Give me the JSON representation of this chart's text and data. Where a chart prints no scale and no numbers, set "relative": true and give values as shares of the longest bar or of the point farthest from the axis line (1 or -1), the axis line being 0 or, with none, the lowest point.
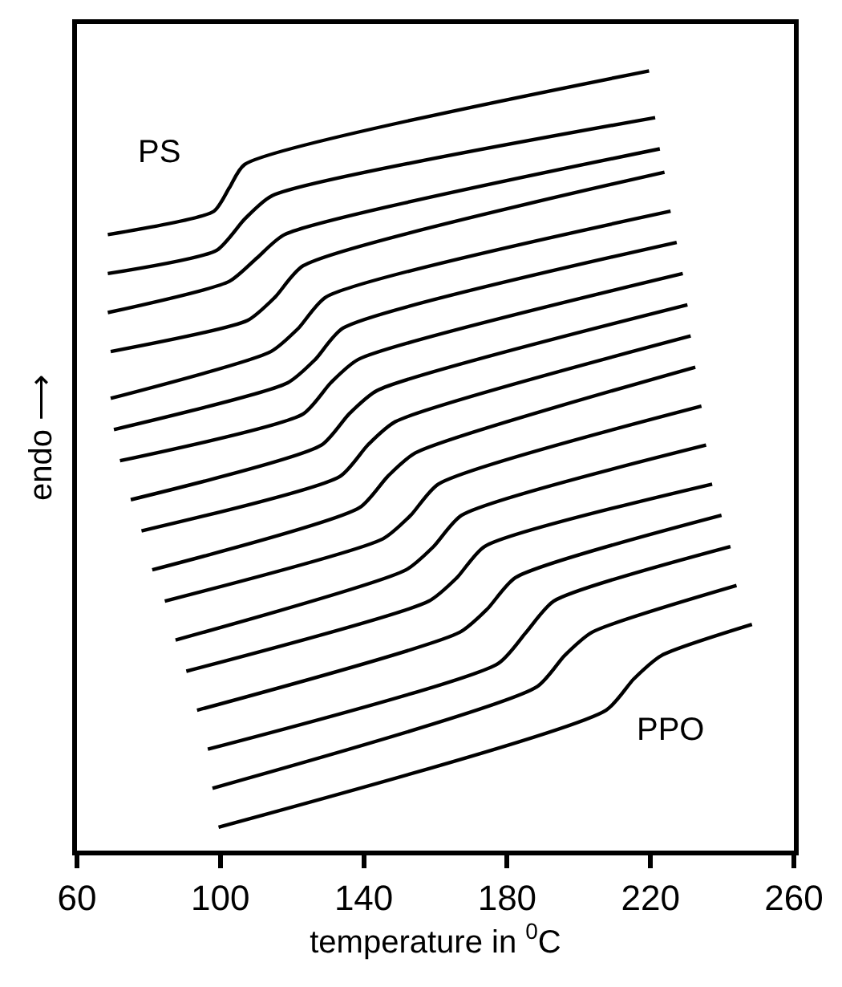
{
  "chart_data": {
    "type": "line",
    "relative": true,
    "xlabel": "temperature in $^{0}$C",
    "ylabel": "endo ⟶",
    "xlim": [
      60,
      260
    ],
    "xticks": [
      60,
      100,
      140,
      180,
      220,
      260
    ],
    "marker": "none",
    "line_style": "solid",
    "annotations": [
      "PS",
      "PPO"
    ],
    "series": [
      {
        "color": "#000000",
        "x": [
          68.6,
          98.2,
          102.5,
          106.8,
          219.6
        ],
        "values": [
          0.79,
          0.82,
          0.85,
          0.88,
          1.0
        ]
      },
      {
        "color": "#000000",
        "x": [
          68.6,
          99.0,
          106.8,
          114.5,
          221.3
        ],
        "values": [
          0.74,
          0.77,
          0.81,
          0.84,
          0.94
        ]
      },
      {
        "color": "#000000",
        "x": [
          68.6,
          102.5,
          110.2,
          117.9,
          222.6
        ],
        "values": [
          0.69,
          0.73,
          0.76,
          0.79,
          0.9
        ]
      },
      {
        "color": "#000000",
        "x": [
          69.4,
          107.6,
          115.3,
          123.1,
          223.9
        ],
        "values": [
          0.64,
          0.68,
          0.71,
          0.75,
          0.87
        ]
      },
      {
        "color": "#000000",
        "x": [
          69.4,
          114.1,
          121.8,
          129.5,
          225.6
        ],
        "values": [
          0.58,
          0.64,
          0.67,
          0.71,
          0.82
        ]
      },
      {
        "color": "#000000",
        "x": [
          70.3,
          118.8,
          126.5,
          134.2,
          227.3
        ],
        "values": [
          0.54,
          0.6,
          0.63,
          0.67,
          0.78
        ]
      },
      {
        "color": "#000000",
        "x": [
          72.0,
          123.1,
          130.8,
          138.5,
          229.0
        ],
        "values": [
          0.5,
          0.56,
          0.6,
          0.63,
          0.74
        ]
      },
      {
        "color": "#000000",
        "x": [
          75.0,
          128.2,
          135.9,
          143.7,
          230.3
        ],
        "values": [
          0.45,
          0.52,
          0.56,
          0.59,
          0.7
        ]
      },
      {
        "color": "#000000",
        "x": [
          78.0,
          133.4,
          141.1,
          148.8,
          231.2
        ],
        "values": [
          0.41,
          0.48,
          0.52,
          0.55,
          0.66
        ]
      },
      {
        "color": "#000000",
        "x": [
          81.0,
          138.9,
          146.7,
          154.4,
          232.5
        ],
        "values": [
          0.36,
          0.44,
          0.48,
          0.51,
          0.62
        ]
      },
      {
        "color": "#000000",
        "x": [
          84.5,
          145.4,
          153.1,
          160.8,
          234.2
        ],
        "values": [
          0.32,
          0.4,
          0.43,
          0.47,
          0.57
        ]
      },
      {
        "color": "#000000",
        "x": [
          87.5,
          151.8,
          159.5,
          167.3,
          235.5
        ],
        "values": [
          0.27,
          0.36,
          0.39,
          0.43,
          0.52
        ]
      },
      {
        "color": "#000000",
        "x": [
          90.5,
          158.2,
          166.0,
          173.7,
          237.2
        ],
        "values": [
          0.23,
          0.32,
          0.35,
          0.39,
          0.47
        ]
      },
      {
        "color": "#000000",
        "x": [
          93.5,
          166.8,
          174.5,
          182.3,
          239.8
        ],
        "values": [
          0.18,
          0.28,
          0.31,
          0.35,
          0.43
        ]
      },
      {
        "color": "#000000",
        "x": [
          96.5,
          177.5,
          185.3,
          193.0,
          242.3
        ],
        "values": [
          0.13,
          0.24,
          0.28,
          0.32,
          0.39
        ]
      },
      {
        "color": "#000000",
        "x": [
          97.8,
          188.3,
          196.0,
          203.7,
          244.0
        ],
        "values": [
          0.08,
          0.21,
          0.25,
          0.28,
          0.34
        ]
      },
      {
        "color": "#000000",
        "x": [
          99.5,
          207.6,
          215.3,
          223.0,
          248.3
        ],
        "values": [
          0.03,
          0.18,
          0.22,
          0.25,
          0.29
        ]
      }
    ]
  }
}
